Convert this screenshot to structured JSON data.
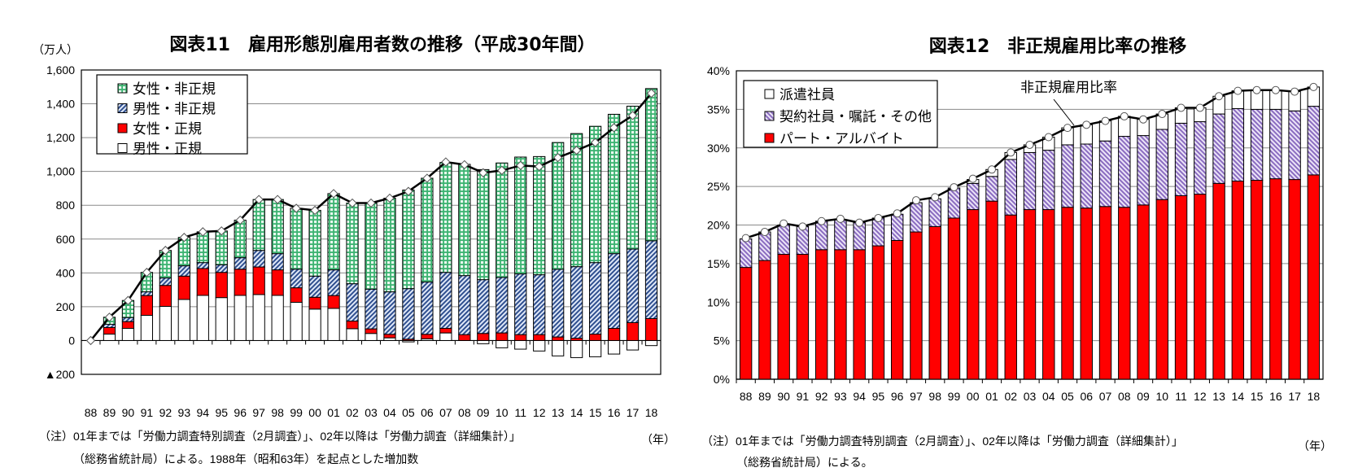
{
  "chart_data": [
    {
      "type": "bar",
      "stacked": true,
      "title": "図表11　雇用形態別雇用者数の推移（平成30年間）",
      "ylabel": "（万人）",
      "xlabel": "（年）",
      "ylim": [
        -200,
        1600
      ],
      "ytick_labels": [
        "▲200",
        "0",
        "200",
        "400",
        "600",
        "800",
        "1,000",
        "1,200",
        "1,400",
        "1,600"
      ],
      "yticks": [
        -200,
        0,
        200,
        400,
        600,
        800,
        1000,
        1200,
        1400,
        1600
      ],
      "grid": true,
      "legend_position": "top-left",
      "categories": [
        "88",
        "89",
        "90",
        "91",
        "92",
        "93",
        "94",
        "95",
        "96",
        "97",
        "98",
        "99",
        "00",
        "01",
        "02",
        "03",
        "04",
        "05",
        "06",
        "07",
        "08",
        "09",
        "10",
        "11",
        "12",
        "13",
        "14",
        "15",
        "16",
        "17",
        "18"
      ],
      "series": [
        {
          "name": "男性・正規",
          "color": "#ffffff",
          "values": [
            0,
            38,
            72,
            149,
            202,
            243,
            267,
            254,
            267,
            272,
            267,
            226,
            186,
            190,
            70,
            42,
            16,
            -8,
            10,
            45,
            0,
            -19,
            -43,
            -51,
            -62,
            -91,
            -101,
            -96,
            -80,
            -56,
            -30
          ]
        },
        {
          "name": "女性・正規",
          "color": "#ff0000",
          "values": [
            0,
            39,
            40,
            117,
            124,
            138,
            159,
            149,
            155,
            163,
            151,
            86,
            70,
            76,
            45,
            27,
            21,
            8,
            27,
            27,
            35,
            42,
            45,
            35,
            35,
            21,
            14,
            38,
            72,
            106,
            130
          ]
        },
        {
          "name": "男性・非正規",
          "color": "#3a5a9c",
          "values": [
            0,
            19,
            24,
            22,
            44,
            61,
            35,
            45,
            68,
            98,
            96,
            110,
            125,
            152,
            221,
            235,
            251,
            299,
            309,
            331,
            349,
            318,
            328,
            359,
            354,
            400,
            423,
            423,
            442,
            435,
            460
          ]
        },
        {
          "name": "女性・非正規",
          "color": "#3cb371",
          "values": [
            0,
            42,
            101,
            115,
            163,
            168,
            182,
            200,
            222,
            301,
            320,
            360,
            389,
            451,
            477,
            509,
            554,
            583,
            614,
            650,
            658,
            651,
            677,
            691,
            699,
            750,
            787,
            806,
            824,
            845,
            900
          ]
        }
      ],
      "line": {
        "values": [
          0,
          138,
          237,
          403,
          533,
          610,
          643,
          648,
          712,
          834,
          834,
          782,
          770,
          869,
          813,
          813,
          842,
          882,
          960,
          1056,
          1040,
          992,
          1006,
          1035,
          1029,
          1082,
          1125,
          1171,
          1259,
          1331,
          1462
        ]
      },
      "notes": [
        "（注）01年までは「労働力調査特別調査（2月調査）」、02年以降は「労働力調査（詳細集計）」",
        "（総務省統計局）による。1988年（昭和63年）を起点とした増加数"
      ]
    },
    {
      "type": "bar",
      "stacked": true,
      "title": "図表12　非正規雇用比率の推移",
      "xlabel": "（年）",
      "ylim": [
        0,
        40
      ],
      "ytick_labels": [
        "0%",
        "5%",
        "10%",
        "15%",
        "20%",
        "25%",
        "30%",
        "35%",
        "40%"
      ],
      "yticks": [
        0,
        5,
        10,
        15,
        20,
        25,
        30,
        35,
        40
      ],
      "grid": true,
      "legend_position": "top-left",
      "categories": [
        "88",
        "89",
        "90",
        "91",
        "92",
        "93",
        "94",
        "95",
        "96",
        "97",
        "98",
        "99",
        "00",
        "01",
        "02",
        "03",
        "04",
        "05",
        "06",
        "07",
        "08",
        "09",
        "10",
        "11",
        "12",
        "13",
        "14",
        "15",
        "16",
        "17",
        "18"
      ],
      "series": [
        {
          "name": "パート・アルバイト",
          "color": "#ff0000",
          "values": [
            14.5,
            15.4,
            16.2,
            16.2,
            16.8,
            16.8,
            16.8,
            17.3,
            18.0,
            19.1,
            19.8,
            20.9,
            22.0,
            23.1,
            21.3,
            22.0,
            22.0,
            22.3,
            22.2,
            22.4,
            22.3,
            22.6,
            23.3,
            23.8,
            24.0,
            25.4,
            25.7,
            25.8,
            26.0,
            25.9,
            26.5
          ]
        },
        {
          "name": "契約社員・嘱託・その他",
          "color": "#9b7fc8",
          "values": [
            3.7,
            3.7,
            3.8,
            3.6,
            3.7,
            3.9,
            3.5,
            3.6,
            3.4,
            3.8,
            3.6,
            3.9,
            3.4,
            3.2,
            7.2,
            7.4,
            7.7,
            8.1,
            8.3,
            8.5,
            9.2,
            9.0,
            9.1,
            9.4,
            9.4,
            9.0,
            9.4,
            9.2,
            9.0,
            8.9,
            8.9
          ]
        },
        {
          "name": "派遣社員",
          "color": "#ffffff",
          "values": [
            0,
            0,
            0,
            0,
            0,
            0,
            0,
            0,
            0,
            0,
            0,
            0,
            0.5,
            0.9,
            0.9,
            1.0,
            1.7,
            2.2,
            2.5,
            2.6,
            2.6,
            2.1,
            2.0,
            2.0,
            1.8,
            2.3,
            2.3,
            2.5,
            2.5,
            2.5,
            2.5
          ]
        }
      ],
      "line": {
        "name": "非正規雇用比率",
        "values": [
          18.3,
          19.1,
          20.2,
          19.8,
          20.5,
          20.8,
          20.3,
          20.9,
          21.5,
          23.2,
          23.6,
          24.9,
          26.0,
          27.2,
          29.4,
          30.4,
          31.4,
          32.6,
          33.0,
          33.5,
          34.1,
          33.7,
          34.4,
          35.2,
          35.2,
          36.7,
          37.4,
          37.5,
          37.5,
          37.3,
          37.9
        ]
      },
      "annotation": "非正規雇用比率",
      "notes": [
        "（注）01年までは「労働力調査特別調査（2月調査）」、02年以降は「労働力調査（詳細集計）」",
        "（総務省統計局）による。"
      ]
    }
  ]
}
